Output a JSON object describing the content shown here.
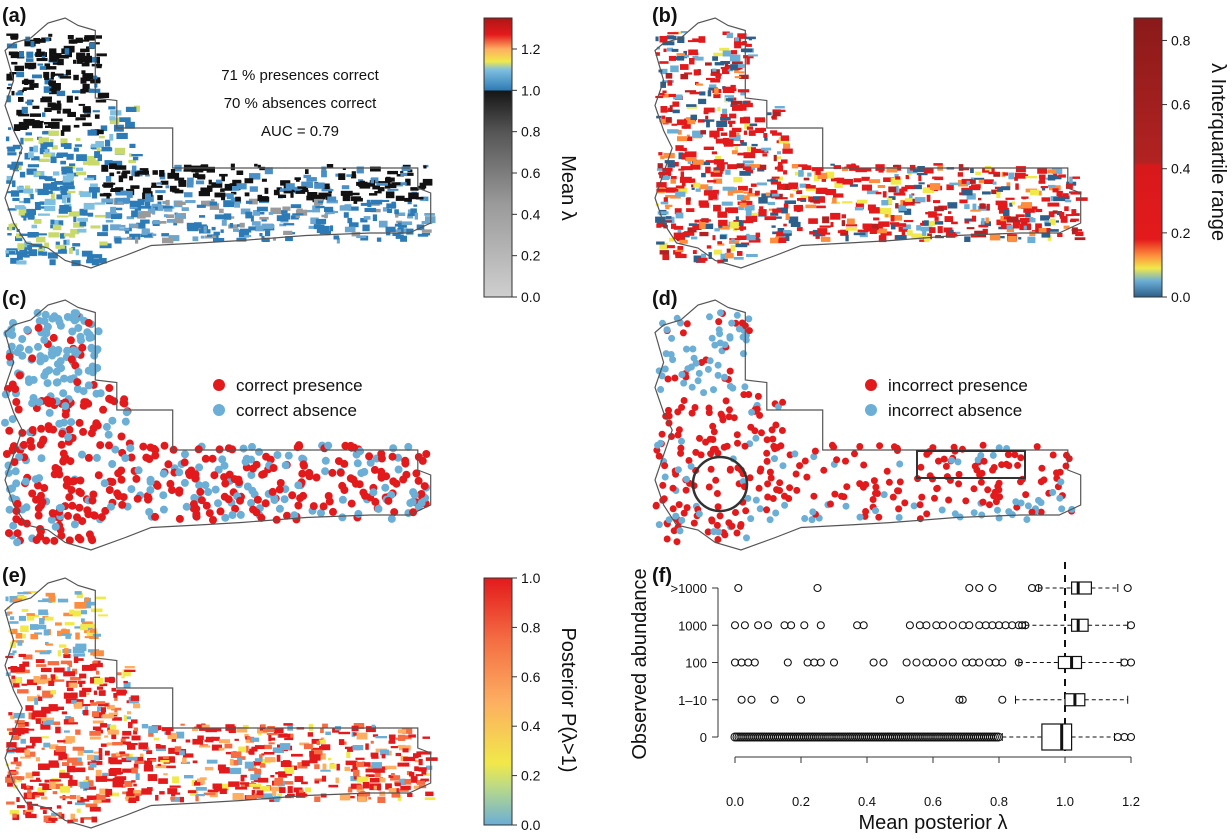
{
  "panels": {
    "a": {
      "tag": "(a)",
      "stats": [
        "71 % presences correct",
        "70 % absences correct",
        "AUC =  0.79"
      ]
    },
    "b": {
      "tag": "(b)"
    },
    "c": {
      "tag": "(c)",
      "legend": [
        "correct presence",
        "correct absence"
      ]
    },
    "d": {
      "tag": "(d)",
      "legend": [
        "incorrect presence",
        "incorrect absence"
      ]
    },
    "e": {
      "tag": "(e)"
    },
    "f": {
      "tag": "(f)"
    }
  },
  "colors": {
    "presence": "#e31a1c",
    "absence": "#6baed6",
    "outline": "#555555",
    "black": "#111111"
  },
  "chart_data": [
    {
      "panel": "(a)",
      "type": "heatmap",
      "colorbar": {
        "label": "Mean λ",
        "range": [
          0,
          1.35
        ],
        "ticks": [
          "0.0",
          "0.2",
          "0.4",
          "0.6",
          "0.8",
          "1.0",
          "1.2"
        ],
        "stops": [
          {
            "v": 0.0,
            "color": "#cfcfcf"
          },
          {
            "v": 0.45,
            "color": "#9a9a9a"
          },
          {
            "v": 0.8,
            "color": "#555555"
          },
          {
            "v": 1.0,
            "color": "#151515"
          },
          {
            "v": 1.0,
            "color": "#2c7bb6"
          },
          {
            "v": 1.1,
            "color": "#7fbfe0"
          },
          {
            "v": 1.14,
            "color": "#f1e84a"
          },
          {
            "v": 1.2,
            "color": "#fdae61"
          },
          {
            "v": 1.27,
            "color": "#e31a1c"
          },
          {
            "v": 1.35,
            "color": "#b01515"
          }
        ]
      }
    },
    {
      "panel": "(b)",
      "type": "heatmap",
      "colorbar": {
        "label": "λ Interquartile range",
        "range": [
          0,
          0.87
        ],
        "ticks": [
          "0.0",
          "0.2",
          "0.4",
          "0.6",
          "0.8"
        ],
        "stops": [
          {
            "v": 0.0,
            "color": "#2c5f8a"
          },
          {
            "v": 0.05,
            "color": "#6baed6"
          },
          {
            "v": 0.09,
            "color": "#f1e84a"
          },
          {
            "v": 0.13,
            "color": "#fd8d3c"
          },
          {
            "v": 0.18,
            "color": "#e31a1c"
          },
          {
            "v": 0.41,
            "color": "#d7191c"
          },
          {
            "v": 0.42,
            "color": "#b22222"
          },
          {
            "v": 0.87,
            "color": "#8b1a1a"
          }
        ]
      }
    },
    {
      "panel": "(e)",
      "type": "heatmap",
      "colorbar": {
        "label": "Posterior P(λ>1)",
        "range": [
          0,
          1
        ],
        "ticks": [
          "0.0",
          "0.2",
          "0.4",
          "0.6",
          "0.8",
          "1.0"
        ],
        "stops": [
          {
            "v": 0.0,
            "color": "#6baed6"
          },
          {
            "v": 0.15,
            "color": "#b8d98a"
          },
          {
            "v": 0.25,
            "color": "#f1e84a"
          },
          {
            "v": 0.5,
            "color": "#fdae61"
          },
          {
            "v": 0.75,
            "color": "#f46d43"
          },
          {
            "v": 1.0,
            "color": "#e31a1c"
          }
        ]
      }
    },
    {
      "panel": "(f)",
      "type": "scatter",
      "xlabel": "Mean posterior λ",
      "ylabel": "Observed abundance",
      "xlim": [
        0,
        1.2
      ],
      "xticks": [
        "0.0",
        "0.2",
        "0.4",
        "0.6",
        "0.8",
        "1.0",
        "1.2"
      ],
      "categories": [
        "0",
        "1–10",
        "100",
        "1000",
        ">1000"
      ],
      "reference_line_x": 1.0,
      "outliers": [
        {
          "category": ">1000",
          "x": [
            0.01,
            0.25,
            0.71,
            0.74,
            0.78,
            0.9,
            0.92,
            1.19
          ]
        },
        {
          "category": "1000",
          "x": [
            0.0,
            0.03,
            0.07,
            0.1,
            0.15,
            0.17,
            0.21,
            0.26,
            0.37,
            0.39,
            0.53,
            0.56,
            0.58,
            0.61,
            0.63,
            0.66,
            0.69,
            0.71,
            0.74,
            0.76,
            0.78,
            0.8,
            0.82,
            0.84,
            0.86,
            0.87,
            0.88,
            1.2
          ]
        },
        {
          "category": "100",
          "x": [
            0.0,
            0.02,
            0.04,
            0.06,
            0.16,
            0.22,
            0.24,
            0.26,
            0.3,
            0.42,
            0.45,
            0.52,
            0.55,
            0.58,
            0.6,
            0.63,
            0.66,
            0.7,
            0.72,
            0.74,
            0.77,
            0.79,
            0.81,
            0.86,
            1.18,
            1.2
          ]
        },
        {
          "category": "1–10",
          "x": [
            0.02,
            0.05,
            0.12,
            0.2,
            0.5,
            0.68,
            0.69,
            0.81
          ]
        },
        {
          "category": "0",
          "x": [
            1.16,
            1.18,
            1.2
          ]
        }
      ],
      "dense_range": {
        "category": "0",
        "x": [
          0.0,
          0.8
        ]
      },
      "boxes": [
        {
          "category": ">1000",
          "whisker_low": 0.92,
          "q1": 1.02,
          "median": 1.04,
          "q3": 1.08,
          "whisker_high": 1.16
        },
        {
          "category": "1000",
          "whisker_low": 0.88,
          "q1": 1.02,
          "median": 1.04,
          "q3": 1.07,
          "whisker_high": 1.19
        },
        {
          "category": "100",
          "whisker_low": 0.86,
          "q1": 0.98,
          "median": 1.02,
          "q3": 1.05,
          "whisker_high": 1.17
        },
        {
          "category": "1–10",
          "whisker_low": 0.85,
          "q1": 1.0,
          "median": 1.03,
          "q3": 1.06,
          "whisker_high": 1.19
        },
        {
          "category": "0",
          "whisker_low": 0.81,
          "q1": 0.93,
          "median": 0.99,
          "q3": 1.02,
          "whisker_high": 1.15
        }
      ]
    }
  ]
}
